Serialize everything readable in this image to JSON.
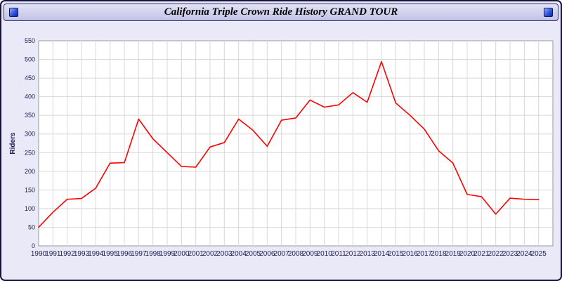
{
  "window": {
    "title": "California Triple Crown Ride History GRAND TOUR"
  },
  "colors": {
    "page_bg": "#e9e9f8",
    "titlebar_bg": "#ccccee",
    "frame_border": "#14143c",
    "plot_bg": "#ffffff",
    "plot_border": "#9a9a9a",
    "grid": "#d8d8d8",
    "tick_text": "#1c1c50",
    "line": "#ff0000"
  },
  "chart_data": {
    "type": "line",
    "title": "California Triple Crown Ride History GRAND TOUR",
    "xlabel": "",
    "ylabel": "Riders",
    "ylim": [
      0,
      550
    ],
    "ytick_step": 50,
    "grid": true,
    "legend_position": "none",
    "x": [
      1990,
      1991,
      1992,
      1993,
      1994,
      1995,
      1996,
      1997,
      1998,
      1999,
      2000,
      2001,
      2002,
      2003,
      2004,
      2005,
      2006,
      2007,
      2008,
      2009,
      2010,
      2011,
      2012,
      2013,
      2014,
      2015,
      2016,
      2017,
      2018,
      2019,
      2020,
      2021,
      2022,
      2023,
      2024,
      2025
    ],
    "series": [
      {
        "name": "Riders",
        "color": "#ff0000",
        "values": [
          50,
          90,
          125,
          127,
          155,
          222,
          223,
          340,
          287,
          250,
          213,
          211,
          265,
          277,
          340,
          310,
          267,
          337,
          343,
          391,
          372,
          378,
          411,
          385,
          494,
          383,
          350,
          313,
          255,
          222,
          138,
          132,
          85,
          128,
          125,
          124
        ]
      }
    ]
  }
}
